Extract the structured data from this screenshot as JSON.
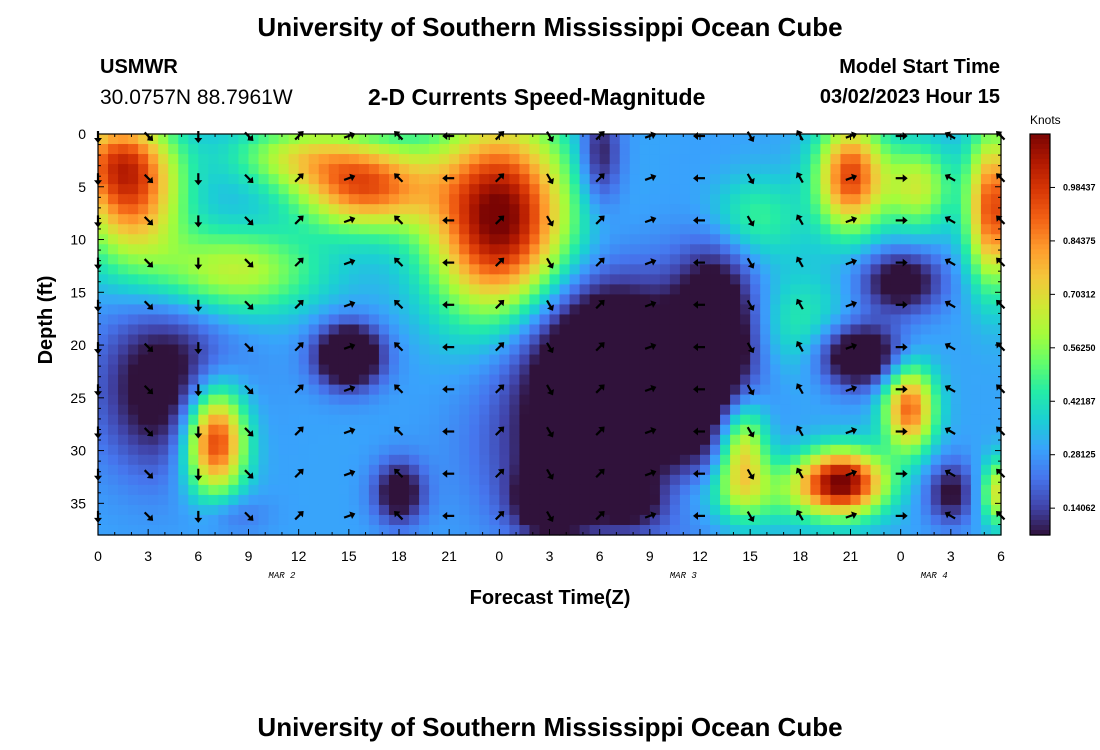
{
  "header": {
    "title": "University of Southern Mississippi Ocean Cube",
    "station_id": "USMWR",
    "coords": "30.0757N  88.7961W",
    "product": "2-D Currents Speed-Magnitude",
    "model_label": "Model Start Time",
    "model_time": "03/02/2023 Hour 15"
  },
  "footer": {
    "title": "University of Southern Mississippi Ocean Cube"
  },
  "chart_data": {
    "type": "heatmap",
    "xlabel": "Forecast Time(Z)",
    "ylabel": "Depth (ft)",
    "x_ticks": [
      "0",
      "3",
      "6",
      "9",
      "12",
      "15",
      "18",
      "21",
      "0",
      "3",
      "6",
      "9",
      "12",
      "15",
      "18",
      "21",
      "0",
      "3",
      "6"
    ],
    "x_range": [
      0,
      54
    ],
    "date_labels": [
      {
        "text": "MAR 2",
        "hour": 11
      },
      {
        "text": "MAR 3",
        "hour": 35
      },
      {
        "text": "MAR 4",
        "hour": 50
      }
    ],
    "y_ticks": [
      0,
      5,
      10,
      15,
      20,
      25,
      30,
      35
    ],
    "y_range": [
      0,
      38
    ],
    "colorbar": {
      "label": "Knots",
      "range": [
        0.07,
        1.125
      ],
      "ticks": [
        "0.98437",
        "0.84375",
        "0.70312",
        "0.56250",
        "0.42187",
        "0.28125",
        "0.14062"
      ],
      "tick_values": [
        0.98437,
        0.84375,
        0.70312,
        0.5625,
        0.42187,
        0.28125,
        0.14062
      ]
    },
    "colormap": [
      "#30123b",
      "#4145ab",
      "#4675ed",
      "#39a2fc",
      "#1bcfd4",
      "#24eca6",
      "#61fc6c",
      "#a4fc3b",
      "#d1e834",
      "#f3c63a",
      "#fe9b2d",
      "#f36315",
      "#d93806",
      "#b11901",
      "#7a0403"
    ],
    "speed_blobs": [
      {
        "t": 2,
        "d": 6,
        "st": 3,
        "sd": 6,
        "v": 0.55
      },
      {
        "t": 1,
        "d": 2,
        "st": 3,
        "sd": 4,
        "v": 0.35
      },
      {
        "t": 16,
        "d": 5,
        "st": 4,
        "sd": 4,
        "v": 0.6
      },
      {
        "t": 12,
        "d": 2,
        "st": 4,
        "sd": 3,
        "v": 0.3
      },
      {
        "t": 8,
        "d": 13,
        "st": 5,
        "sd": 4,
        "v": 0.35
      },
      {
        "t": 24,
        "d": 8,
        "st": 4,
        "sd": 9,
        "v": 0.85
      },
      {
        "t": 7,
        "d": 29,
        "st": 1.8,
        "sd": 5,
        "v": 0.75
      },
      {
        "t": 15,
        "d": 21,
        "st": 2,
        "sd": 3,
        "v": -0.45
      },
      {
        "t": 18,
        "d": 34,
        "st": 1.5,
        "sd": 3,
        "v": -0.3
      },
      {
        "t": 4,
        "d": 24,
        "st": 4,
        "sd": 8,
        "v": -0.3
      },
      {
        "t": 8,
        "d": 36,
        "st": 2,
        "sd": 2,
        "v": -0.1
      },
      {
        "t": 30,
        "d": 20,
        "st": 5,
        "sd": 7,
        "v": -0.4
      },
      {
        "t": 30,
        "d": 30,
        "st": 6,
        "sd": 8,
        "v": -0.35
      },
      {
        "t": 27,
        "d": 35,
        "st": 2,
        "sd": 3,
        "v": -0.3
      },
      {
        "t": 32,
        "d": 35,
        "st": 1.8,
        "sd": 2,
        "v": -0.15
      },
      {
        "t": 30,
        "d": 2,
        "st": 1.3,
        "sd": 5,
        "v": -0.25
      },
      {
        "t": 37,
        "d": 20,
        "st": 2.5,
        "sd": 10,
        "v": -0.4
      },
      {
        "t": 39,
        "d": 8,
        "st": 3,
        "sd": 4,
        "v": 0.2
      },
      {
        "t": 42,
        "d": 18,
        "st": 3,
        "sd": 5,
        "v": 0.15
      },
      {
        "t": 39,
        "d": 34,
        "st": 5,
        "sd": 3,
        "v": 0.2
      },
      {
        "t": 38.5,
        "d": 30,
        "st": 1.5,
        "sd": 5,
        "v": 0.5
      },
      {
        "t": 45,
        "d": 4,
        "st": 2,
        "sd": 5,
        "v": 0.65
      },
      {
        "t": 49,
        "d": 5,
        "st": 2,
        "sd": 4,
        "v": 0.35
      },
      {
        "t": 48,
        "d": 14,
        "st": 2.5,
        "sd": 3,
        "v": -0.3
      },
      {
        "t": 45.5,
        "d": 21,
        "st": 2.5,
        "sd": 3,
        "v": -0.4
      },
      {
        "t": 44.5,
        "d": 33,
        "st": 2.5,
        "sd": 3,
        "v": 0.8
      },
      {
        "t": 48.5,
        "d": 26,
        "st": 1.5,
        "sd": 4,
        "v": 0.6
      },
      {
        "t": 51,
        "d": 34,
        "st": 1.5,
        "sd": 3,
        "v": -0.25
      },
      {
        "t": 53.5,
        "d": 7,
        "st": 1.5,
        "sd": 7,
        "v": 0.65
      },
      {
        "t": 54,
        "d": 34,
        "st": 1.2,
        "sd": 3,
        "v": 0.4
      }
    ],
    "vector_times": [
      0,
      3,
      6,
      9,
      12,
      15,
      18,
      21,
      24,
      27,
      30,
      33,
      36,
      39,
      42,
      45,
      48,
      51,
      54
    ],
    "vector_depths": [
      0,
      4,
      8,
      12,
      16,
      20,
      24,
      28,
      32,
      36
    ],
    "vector_angles_deg": [
      [
        -90,
        -45,
        -90,
        -45,
        45,
        20,
        135,
        180,
        45,
        -60,
        45,
        20,
        180,
        -60,
        120,
        20,
        0,
        150,
        135
      ],
      [
        -90,
        -45,
        -90,
        -45,
        45,
        20,
        135,
        180,
        45,
        -60,
        45,
        20,
        180,
        -60,
        120,
        20,
        0,
        150,
        135
      ],
      [
        -90,
        -45,
        -90,
        -45,
        45,
        20,
        135,
        180,
        45,
        -60,
        45,
        20,
        180,
        -60,
        120,
        20,
        0,
        150,
        135
      ],
      [
        -90,
        -45,
        -90,
        -45,
        45,
        20,
        135,
        180,
        45,
        -60,
        45,
        20,
        180,
        -60,
        120,
        20,
        0,
        150,
        135
      ],
      [
        -90,
        -45,
        -90,
        -45,
        45,
        20,
        135,
        180,
        45,
        -60,
        45,
        20,
        180,
        -60,
        120,
        20,
        0,
        150,
        135
      ],
      [
        -90,
        -45,
        -90,
        -45,
        45,
        20,
        135,
        180,
        45,
        -60,
        45,
        20,
        180,
        -60,
        120,
        20,
        0,
        150,
        135
      ],
      [
        -90,
        -45,
        -90,
        -45,
        45,
        20,
        135,
        180,
        45,
        -60,
        45,
        20,
        180,
        -60,
        120,
        20,
        0,
        150,
        135
      ],
      [
        -90,
        -45,
        -90,
        -45,
        45,
        20,
        135,
        180,
        45,
        -60,
        45,
        20,
        180,
        -60,
        120,
        20,
        0,
        150,
        135
      ],
      [
        -90,
        -45,
        -90,
        -45,
        45,
        20,
        135,
        180,
        45,
        -60,
        45,
        20,
        180,
        -60,
        120,
        20,
        0,
        150,
        135
      ],
      [
        -90,
        -45,
        -90,
        -45,
        45,
        20,
        135,
        180,
        45,
        -60,
        45,
        20,
        180,
        -60,
        120,
        20,
        0,
        150,
        135
      ]
    ]
  }
}
